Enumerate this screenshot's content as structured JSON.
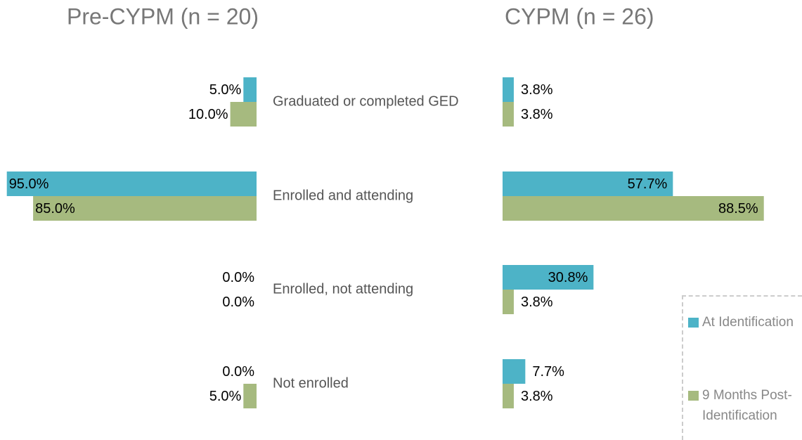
{
  "chart_data": {
    "type": "butterfly",
    "categories": [
      "Graduated or completed GED",
      "Enrolled and attending",
      "Enrolled, not attending",
      "Not enrolled"
    ],
    "panels": [
      {
        "title": "Pre-CYPM (n = 20)",
        "series": [
          {
            "name": "At Identification",
            "color": "#4db3c7",
            "values": [
              5.0,
              95.0,
              0.0,
              0.0
            ],
            "value_labels": [
              "5.0%",
              "95.0%",
              "0.0%",
              "0.0%"
            ]
          },
          {
            "name": "9 Months Post-Identification",
            "color": "#a6ba7f",
            "values": [
              10.0,
              85.0,
              0.0,
              5.0
            ],
            "value_labels": [
              "10.0%",
              "85.0%",
              "0.0%",
              "5.0%"
            ]
          }
        ]
      },
      {
        "title": "CYPM (n = 26)",
        "series": [
          {
            "name": "At Identification",
            "color": "#4db3c7",
            "values": [
              3.8,
              57.7,
              30.8,
              7.7
            ],
            "value_labels": [
              "3.8%",
              "57.7%",
              "30.8%",
              "7.7%"
            ]
          },
          {
            "name": "9 Months Post-Identification",
            "color": "#a6ba7f",
            "values": [
              3.8,
              88.5,
              3.8,
              3.8
            ],
            "value_labels": [
              "3.8%",
              "88.5%",
              "3.8%",
              "3.8%"
            ]
          }
        ]
      }
    ]
  }
}
